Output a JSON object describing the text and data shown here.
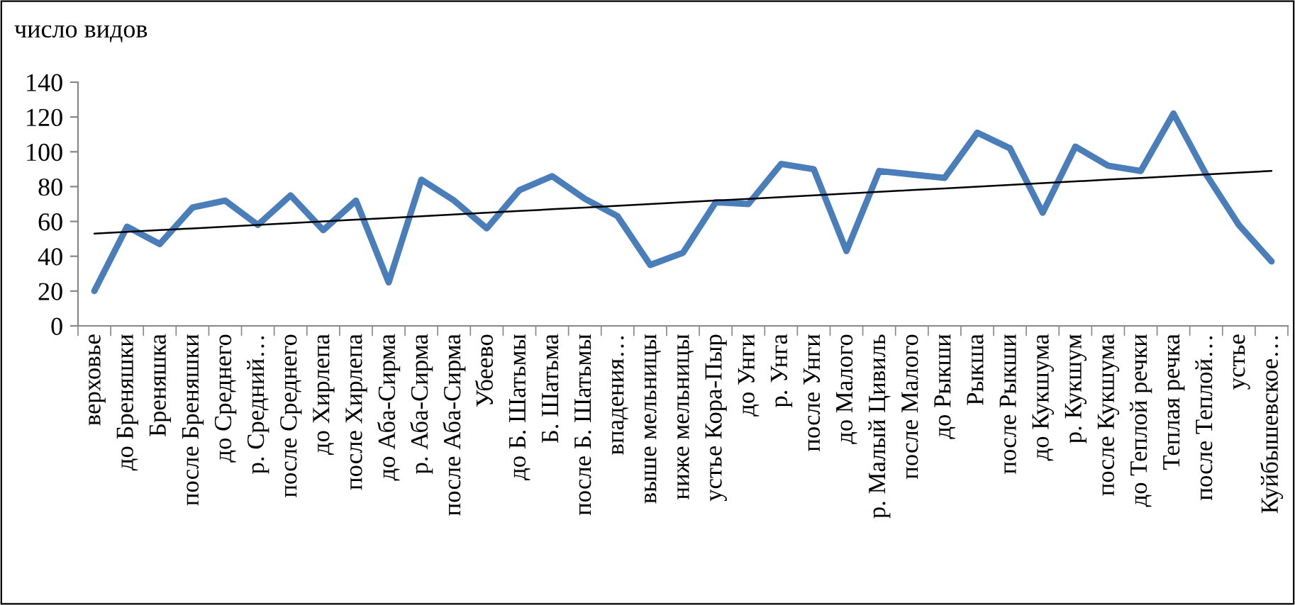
{
  "chart_data": {
    "type": "line",
    "ylabel": "число видов",
    "categories": [
      "верховье",
      "до Бреняшки",
      "Бреняшка",
      "после Бреняшки",
      "до Среднего",
      "р. Средний…",
      "после Среднего",
      "до Хирлепа",
      "после Хирлепа",
      "до Аба-Сирма",
      "р. Аба-Сирма",
      "после Аба-Сирма",
      "Убеево",
      "до Б. Шатьмы",
      "Б. Шатьма",
      "после Б. Шатьмы",
      "впадения…",
      "выше мельницы",
      "ниже мельницы",
      "устье Кора-Пыр",
      "до Унги",
      "р. Унга",
      "после Унги",
      "до Малого",
      "р. Малый Цивиль",
      "после Малого",
      "до Рыкши",
      "Рыкша",
      "после Рыкши",
      "до Кукшума",
      "р. Кукшум",
      "после Кукшума",
      "до Теплой речки",
      "Теплая речка",
      "после Теплой…",
      "устье",
      "Куйбышевское…"
    ],
    "series": [
      {
        "color": "#4a7ebb",
        "values": [
          20,
          57,
          47,
          68,
          72,
          58,
          75,
          55,
          72,
          25,
          84,
          72,
          56,
          78,
          86,
          73,
          63,
          35,
          42,
          71,
          70,
          93,
          90,
          43,
          89,
          87,
          85,
          111,
          102,
          65,
          103,
          92,
          89,
          122,
          87,
          58,
          37
        ]
      },
      {
        "color": "#000000",
        "type": "line",
        "values": [
          53,
          54,
          55,
          56,
          57,
          58,
          59,
          60,
          61,
          62,
          63,
          64,
          65,
          66,
          67,
          68,
          69,
          70,
          71,
          72,
          73,
          74,
          75,
          76,
          77,
          78,
          79,
          80,
          81,
          82,
          83,
          84,
          85,
          86,
          87,
          88,
          89
        ]
      }
    ],
    "ylim": [
      0,
      140
    ],
    "yticks": [
      0,
      20,
      40,
      60,
      80,
      100,
      120,
      140
    ],
    "grid": false,
    "marker": "none",
    "line_style": "solid"
  }
}
